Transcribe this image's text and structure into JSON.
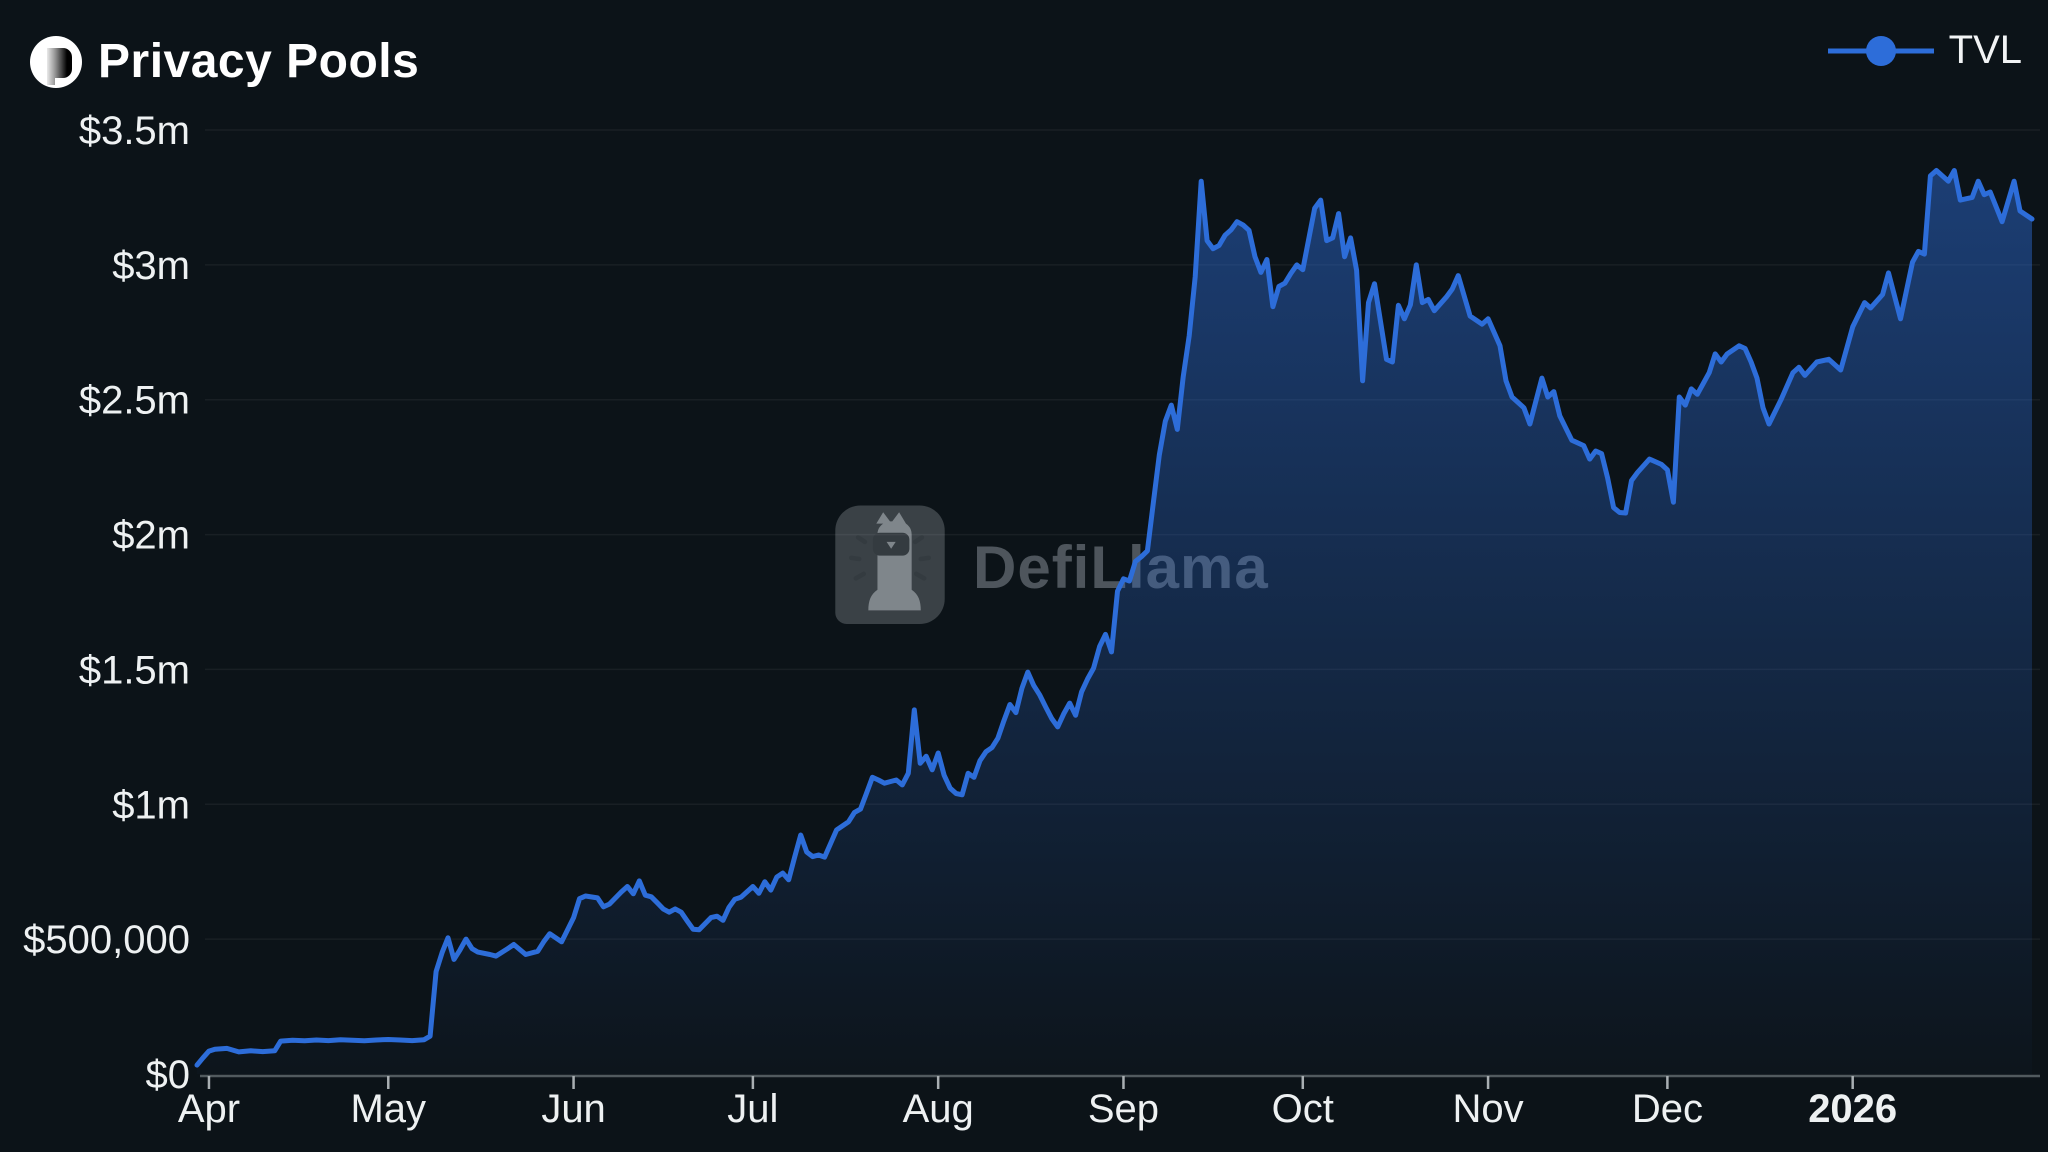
{
  "header": {
    "title": "Privacy Pools",
    "logo": "privacy-pools-logo"
  },
  "legend": {
    "items": [
      {
        "label": "TVL",
        "color": "#2d6dd9",
        "marker": "line-with-dot"
      }
    ]
  },
  "watermark": {
    "text": "DefiLlama",
    "icon": "defillama-llama-logo"
  },
  "colors": {
    "background": "#0c1318",
    "line": "#2d6dd9",
    "area_top": "rgba(45,109,217,0.5)",
    "area_bottom": "rgba(45,109,217,0.02)",
    "axis_line": "#515a5e",
    "tick_mark": "#a9afb2",
    "label_text": "#eef1f2",
    "gridline": "rgba(255,255,255,0.055)"
  },
  "chart_data": {
    "type": "area",
    "title": "Privacy Pools TVL",
    "unit": "USD millions",
    "grid": "horizontal-only",
    "legend_position": "top-right",
    "y_max": 3.5,
    "x_range": [
      "2025-03-30",
      "2026-01-31"
    ],
    "y_ticks": [
      {
        "label": "$0",
        "value": 0
      },
      {
        "label": "$500,000",
        "value": 0.5
      },
      {
        "label": "$1m",
        "value": 1
      },
      {
        "label": "$1.5m",
        "value": 1.5
      },
      {
        "label": "$2m",
        "value": 2
      },
      {
        "label": "$2.5m",
        "value": 2.5
      },
      {
        "label": "$3m",
        "value": 3
      },
      {
        "label": "$3.5m",
        "value": 3.5
      }
    ],
    "x_ticks": [
      {
        "label": "Apr",
        "date": "2025-04-01",
        "bold": false
      },
      {
        "label": "May",
        "date": "2025-05-01",
        "bold": false
      },
      {
        "label": "Jun",
        "date": "2025-06-01",
        "bold": false
      },
      {
        "label": "Jul",
        "date": "2025-07-01",
        "bold": false
      },
      {
        "label": "Aug",
        "date": "2025-08-01",
        "bold": false
      },
      {
        "label": "Sep",
        "date": "2025-09-01",
        "bold": false
      },
      {
        "label": "Oct",
        "date": "2025-10-01",
        "bold": false
      },
      {
        "label": "Nov",
        "date": "2025-11-01",
        "bold": false
      },
      {
        "label": "Dec",
        "date": "2025-12-01",
        "bold": false
      },
      {
        "label": "2026",
        "date": "2026-01-01",
        "bold": true
      }
    ],
    "series": [
      {
        "name": "TVL",
        "color": "#2d6dd9",
        "points": [
          [
            "2025-03-30",
            0.033
          ],
          [
            "2025-03-31",
            0.06
          ],
          [
            "2025-04-01",
            0.085
          ],
          [
            "2025-04-02",
            0.092
          ],
          [
            "2025-04-04",
            0.095
          ],
          [
            "2025-04-06",
            0.082
          ],
          [
            "2025-04-08",
            0.086
          ],
          [
            "2025-04-10",
            0.083
          ],
          [
            "2025-04-12",
            0.086
          ],
          [
            "2025-04-13",
            0.122
          ],
          [
            "2025-04-15",
            0.125
          ],
          [
            "2025-04-17",
            0.123
          ],
          [
            "2025-04-19",
            0.126
          ],
          [
            "2025-04-21",
            0.124
          ],
          [
            "2025-04-23",
            0.127
          ],
          [
            "2025-04-25",
            0.125
          ],
          [
            "2025-04-27",
            0.123
          ],
          [
            "2025-04-29",
            0.126
          ],
          [
            "2025-05-01",
            0.128
          ],
          [
            "2025-05-03",
            0.126
          ],
          [
            "2025-05-05",
            0.124
          ],
          [
            "2025-05-07",
            0.127
          ],
          [
            "2025-05-08",
            0.14
          ],
          [
            "2025-05-09",
            0.38
          ],
          [
            "2025-05-10",
            0.45
          ],
          [
            "2025-05-11",
            0.505
          ],
          [
            "2025-05-12",
            0.425
          ],
          [
            "2025-05-13",
            0.46
          ],
          [
            "2025-05-14",
            0.5
          ],
          [
            "2025-05-15",
            0.465
          ],
          [
            "2025-05-16",
            0.452
          ],
          [
            "2025-05-18",
            0.443
          ],
          [
            "2025-05-19",
            0.437
          ],
          [
            "2025-05-21",
            0.465
          ],
          [
            "2025-05-22",
            0.48
          ],
          [
            "2025-05-24",
            0.443
          ],
          [
            "2025-05-26",
            0.455
          ],
          [
            "2025-05-27",
            0.49
          ],
          [
            "2025-05-28",
            0.52
          ],
          [
            "2025-05-30",
            0.49
          ],
          [
            "2025-06-01",
            0.58
          ],
          [
            "2025-06-02",
            0.65
          ],
          [
            "2025-06-03",
            0.66
          ],
          [
            "2025-06-05",
            0.653
          ],
          [
            "2025-06-06",
            0.62
          ],
          [
            "2025-06-07",
            0.63
          ],
          [
            "2025-06-09",
            0.675
          ],
          [
            "2025-06-10",
            0.695
          ],
          [
            "2025-06-11",
            0.668
          ],
          [
            "2025-06-12",
            0.716
          ],
          [
            "2025-06-13",
            0.663
          ],
          [
            "2025-06-14",
            0.657
          ],
          [
            "2025-06-15",
            0.635
          ],
          [
            "2025-06-16",
            0.612
          ],
          [
            "2025-06-17",
            0.6
          ],
          [
            "2025-06-18",
            0.612
          ],
          [
            "2025-06-19",
            0.6
          ],
          [
            "2025-06-20",
            0.568
          ],
          [
            "2025-06-21",
            0.537
          ],
          [
            "2025-06-22",
            0.535
          ],
          [
            "2025-06-24",
            0.58
          ],
          [
            "2025-06-25",
            0.585
          ],
          [
            "2025-06-26",
            0.57
          ],
          [
            "2025-06-27",
            0.618
          ],
          [
            "2025-06-28",
            0.648
          ],
          [
            "2025-06-29",
            0.655
          ],
          [
            "2025-06-30",
            0.675
          ],
          [
            "2025-07-01",
            0.695
          ],
          [
            "2025-07-02",
            0.67
          ],
          [
            "2025-07-03",
            0.713
          ],
          [
            "2025-07-04",
            0.682
          ],
          [
            "2025-07-05",
            0.73
          ],
          [
            "2025-07-06",
            0.745
          ],
          [
            "2025-07-07",
            0.72
          ],
          [
            "2025-07-08",
            0.805
          ],
          [
            "2025-07-09",
            0.886
          ],
          [
            "2025-07-10",
            0.823
          ],
          [
            "2025-07-11",
            0.806
          ],
          [
            "2025-07-12",
            0.812
          ],
          [
            "2025-07-13",
            0.804
          ],
          [
            "2025-07-15",
            0.905
          ],
          [
            "2025-07-17",
            0.935
          ],
          [
            "2025-07-18",
            0.97
          ],
          [
            "2025-07-19",
            0.982
          ],
          [
            "2025-07-20",
            1.04
          ],
          [
            "2025-07-21",
            1.1
          ],
          [
            "2025-07-22",
            1.09
          ],
          [
            "2025-07-23",
            1.078
          ],
          [
            "2025-07-25",
            1.09
          ],
          [
            "2025-07-26",
            1.072
          ],
          [
            "2025-07-27",
            1.115
          ],
          [
            "2025-07-28",
            1.35
          ],
          [
            "2025-07-29",
            1.152
          ],
          [
            "2025-07-30",
            1.178
          ],
          [
            "2025-07-31",
            1.128
          ],
          [
            "2025-08-01",
            1.19
          ],
          [
            "2025-08-02",
            1.108
          ],
          [
            "2025-08-03",
            1.06
          ],
          [
            "2025-08-04",
            1.04
          ],
          [
            "2025-08-05",
            1.035
          ],
          [
            "2025-08-06",
            1.115
          ],
          [
            "2025-08-07",
            1.1
          ],
          [
            "2025-08-08",
            1.162
          ],
          [
            "2025-08-09",
            1.195
          ],
          [
            "2025-08-10",
            1.21
          ],
          [
            "2025-08-11",
            1.245
          ],
          [
            "2025-08-12",
            1.31
          ],
          [
            "2025-08-13",
            1.37
          ],
          [
            "2025-08-14",
            1.34
          ],
          [
            "2025-08-15",
            1.43
          ],
          [
            "2025-08-16",
            1.49
          ],
          [
            "2025-08-17",
            1.44
          ],
          [
            "2025-08-18",
            1.405
          ],
          [
            "2025-08-19",
            1.36
          ],
          [
            "2025-08-20",
            1.318
          ],
          [
            "2025-08-21",
            1.287
          ],
          [
            "2025-08-22",
            1.335
          ],
          [
            "2025-08-23",
            1.375
          ],
          [
            "2025-08-24",
            1.33
          ],
          [
            "2025-08-25",
            1.417
          ],
          [
            "2025-08-26",
            1.465
          ],
          [
            "2025-08-27",
            1.505
          ],
          [
            "2025-08-28",
            1.585
          ],
          [
            "2025-08-29",
            1.63
          ],
          [
            "2025-08-30",
            1.565
          ],
          [
            "2025-08-31",
            1.79
          ],
          [
            "2025-09-01",
            1.836
          ],
          [
            "2025-09-02",
            1.828
          ],
          [
            "2025-09-03",
            1.9
          ],
          [
            "2025-09-04",
            1.918
          ],
          [
            "2025-09-05",
            1.94
          ],
          [
            "2025-09-06",
            2.12
          ],
          [
            "2025-09-07",
            2.295
          ],
          [
            "2025-09-08",
            2.42
          ],
          [
            "2025-09-09",
            2.48
          ],
          [
            "2025-09-10",
            2.39
          ],
          [
            "2025-09-11",
            2.585
          ],
          [
            "2025-09-12",
            2.737
          ],
          [
            "2025-09-13",
            2.956
          ],
          [
            "2025-09-14",
            3.31
          ],
          [
            "2025-09-15",
            3.09
          ],
          [
            "2025-09-16",
            3.06
          ],
          [
            "2025-09-17",
            3.072
          ],
          [
            "2025-09-18",
            3.11
          ],
          [
            "2025-09-19",
            3.13
          ],
          [
            "2025-09-20",
            3.16
          ],
          [
            "2025-09-21",
            3.148
          ],
          [
            "2025-09-22",
            3.128
          ],
          [
            "2025-09-23",
            3.03
          ],
          [
            "2025-09-24",
            2.972
          ],
          [
            "2025-09-25",
            3.02
          ],
          [
            "2025-09-26",
            2.845
          ],
          [
            "2025-09-27",
            2.92
          ],
          [
            "2025-09-28",
            2.932
          ],
          [
            "2025-09-29",
            2.968
          ],
          [
            "2025-09-30",
            3.0
          ],
          [
            "2025-10-01",
            2.982
          ],
          [
            "2025-10-03",
            3.21
          ],
          [
            "2025-10-04",
            3.24
          ],
          [
            "2025-10-05",
            3.09
          ],
          [
            "2025-10-06",
            3.1
          ],
          [
            "2025-10-07",
            3.19
          ],
          [
            "2025-10-08",
            3.03
          ],
          [
            "2025-10-09",
            3.1
          ],
          [
            "2025-10-10",
            2.98
          ],
          [
            "2025-10-11",
            2.57
          ],
          [
            "2025-10-12",
            2.86
          ],
          [
            "2025-10-13",
            2.93
          ],
          [
            "2025-10-15",
            2.65
          ],
          [
            "2025-10-16",
            2.64
          ],
          [
            "2025-10-17",
            2.85
          ],
          [
            "2025-10-18",
            2.8
          ],
          [
            "2025-10-19",
            2.852
          ],
          [
            "2025-10-20",
            3.0
          ],
          [
            "2025-10-21",
            2.86
          ],
          [
            "2025-10-22",
            2.872
          ],
          [
            "2025-10-23",
            2.83
          ],
          [
            "2025-10-25",
            2.88
          ],
          [
            "2025-10-26",
            2.91
          ],
          [
            "2025-10-27",
            2.96
          ],
          [
            "2025-10-29",
            2.81
          ],
          [
            "2025-10-31",
            2.78
          ],
          [
            "2025-11-01",
            2.8
          ],
          [
            "2025-11-03",
            2.7
          ],
          [
            "2025-11-04",
            2.57
          ],
          [
            "2025-11-05",
            2.51
          ],
          [
            "2025-11-07",
            2.47
          ],
          [
            "2025-11-08",
            2.41
          ],
          [
            "2025-11-10",
            2.58
          ],
          [
            "2025-11-11",
            2.51
          ],
          [
            "2025-11-12",
            2.53
          ],
          [
            "2025-11-13",
            2.44
          ],
          [
            "2025-11-15",
            2.35
          ],
          [
            "2025-11-17",
            2.33
          ],
          [
            "2025-11-18",
            2.28
          ],
          [
            "2025-11-19",
            2.31
          ],
          [
            "2025-11-20",
            2.3
          ],
          [
            "2025-11-21",
            2.21
          ],
          [
            "2025-11-22",
            2.1
          ],
          [
            "2025-11-23",
            2.082
          ],
          [
            "2025-11-24",
            2.08
          ],
          [
            "2025-11-25",
            2.2
          ],
          [
            "2025-11-26",
            2.23
          ],
          [
            "2025-11-28",
            2.28
          ],
          [
            "2025-11-30",
            2.26
          ],
          [
            "2025-12-01",
            2.24
          ],
          [
            "2025-12-02",
            2.12
          ],
          [
            "2025-12-03",
            2.51
          ],
          [
            "2025-12-04",
            2.48
          ],
          [
            "2025-12-05",
            2.54
          ],
          [
            "2025-12-06",
            2.52
          ],
          [
            "2025-12-08",
            2.6
          ],
          [
            "2025-12-09",
            2.67
          ],
          [
            "2025-12-10",
            2.64
          ],
          [
            "2025-12-11",
            2.67
          ],
          [
            "2025-12-13",
            2.7
          ],
          [
            "2025-12-14",
            2.69
          ],
          [
            "2025-12-15",
            2.64
          ],
          [
            "2025-12-16",
            2.58
          ],
          [
            "2025-12-17",
            2.47
          ],
          [
            "2025-12-18",
            2.41
          ],
          [
            "2025-12-20",
            2.5
          ],
          [
            "2025-12-22",
            2.6
          ],
          [
            "2025-12-23",
            2.62
          ],
          [
            "2025-12-24",
            2.59
          ],
          [
            "2025-12-26",
            2.64
          ],
          [
            "2025-12-28",
            2.65
          ],
          [
            "2025-12-30",
            2.61
          ],
          [
            "2026-01-01",
            2.77
          ],
          [
            "2026-01-03",
            2.86
          ],
          [
            "2026-01-04",
            2.84
          ],
          [
            "2026-01-06",
            2.89
          ],
          [
            "2026-01-07",
            2.97
          ],
          [
            "2026-01-09",
            2.8
          ],
          [
            "2026-01-11",
            3.01
          ],
          [
            "2026-01-12",
            3.05
          ],
          [
            "2026-01-13",
            3.04
          ],
          [
            "2026-01-14",
            3.33
          ],
          [
            "2026-01-15",
            3.35
          ],
          [
            "2026-01-17",
            3.31
          ],
          [
            "2026-01-18",
            3.35
          ],
          [
            "2026-01-19",
            3.24
          ],
          [
            "2026-01-21",
            3.25
          ],
          [
            "2026-01-22",
            3.31
          ],
          [
            "2026-01-23",
            3.26
          ],
          [
            "2026-01-24",
            3.27
          ],
          [
            "2026-01-26",
            3.16
          ],
          [
            "2026-01-28",
            3.31
          ],
          [
            "2026-01-29",
            3.2
          ],
          [
            "2026-01-31",
            3.17
          ]
        ]
      }
    ]
  }
}
